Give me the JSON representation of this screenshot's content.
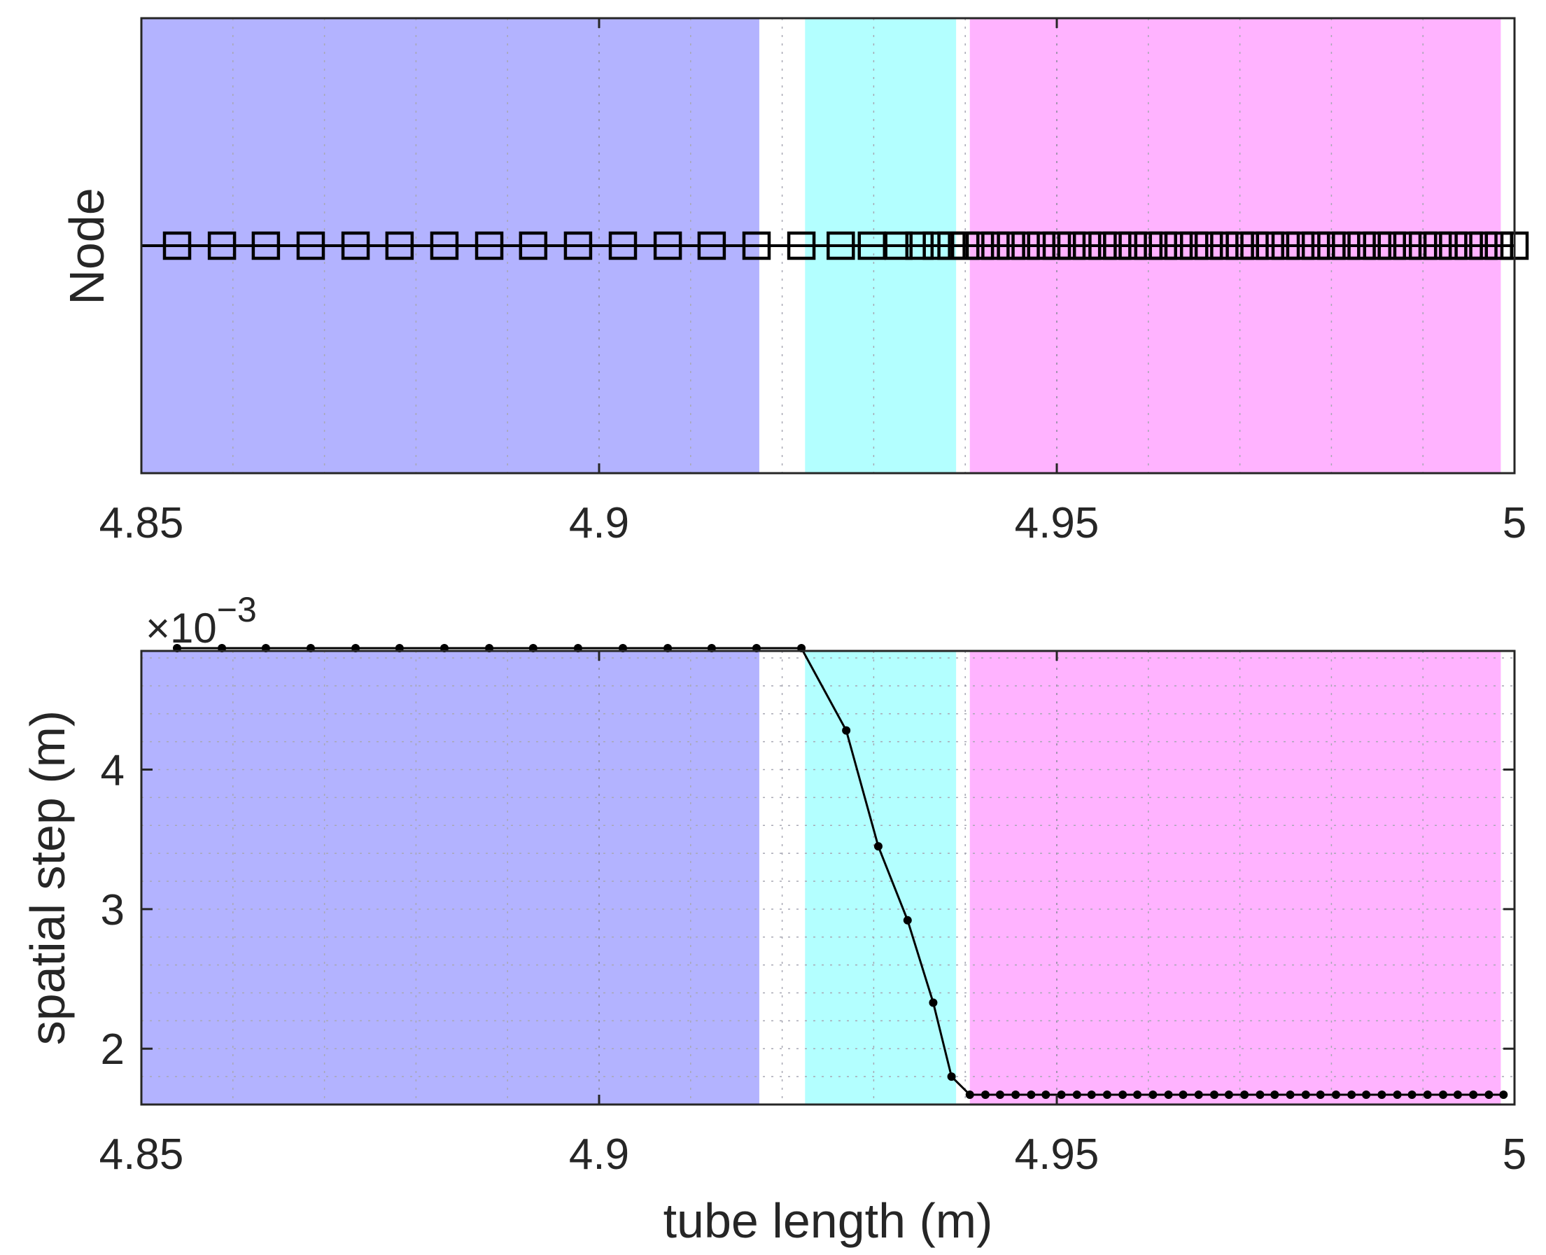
{
  "chart_data": [
    {
      "type": "scatter",
      "ylabel": "Node",
      "xlim": [
        4.85,
        5
      ],
      "ylim": [
        -1,
        1
      ],
      "x_ticks": [
        "4.85",
        "4.9",
        "4.95",
        "5"
      ],
      "y_ticks": [],
      "grid": true,
      "regions": [
        {
          "x0": 4.85,
          "x1": 4.9175,
          "color": "#b3b3ff"
        },
        {
          "x0": 4.9225,
          "x1": 4.939,
          "color": "#b3ffff"
        },
        {
          "x0": 4.9405,
          "x1": 4.9985,
          "color": "#ffb3ff"
        }
      ],
      "series": [
        {
          "marker": "square",
          "color": "#000000",
          "y": 0,
          "x": [
            4.8539,
            4.8588,
            4.8636,
            4.8685,
            4.8734,
            4.8782,
            4.8831,
            4.888,
            4.8928,
            4.8977,
            4.9026,
            4.9075,
            4.9123,
            4.9172,
            4.9221,
            4.9264,
            4.9298,
            4.9327,
            4.935,
            4.9369,
            4.9385,
            4.94,
            4.9416,
            4.9433,
            4.945,
            4.9466,
            4.9483,
            4.95,
            4.9516,
            4.9533,
            4.955,
            4.9566,
            4.9583,
            4.96,
            4.9616,
            4.9633,
            4.965,
            4.9666,
            4.9683,
            4.97,
            4.9716,
            4.9733,
            4.975,
            4.9766,
            4.9783,
            4.98,
            4.9816,
            4.9833,
            4.985,
            4.9866,
            4.9883,
            4.99,
            4.9916,
            4.9933,
            4.995,
            4.9966,
            4.9983,
            5.0
          ]
        }
      ]
    },
    {
      "type": "line",
      "xlabel": "tube length (m)",
      "ylabel": "spatial step (m)",
      "y_multiplier": "×10",
      "y_multiplier_exponent": "−3",
      "xlim": [
        4.85,
        5
      ],
      "ylim": [
        1.6,
        4.85
      ],
      "x_ticks": [
        "4.85",
        "4.9",
        "4.95",
        "5"
      ],
      "y_ticks": [
        "2",
        "3",
        "4"
      ],
      "grid": true,
      "regions": [
        {
          "x0": 4.85,
          "x1": 4.9175,
          "color": "#b3b3ff"
        },
        {
          "x0": 4.9225,
          "x1": 4.939,
          "color": "#b3ffff"
        },
        {
          "x0": 4.9405,
          "x1": 4.9985,
          "color": "#ffb3ff"
        }
      ],
      "series": [
        {
          "color": "#000000",
          "marker": "dot",
          "x": [
            4.8539,
            4.8588,
            4.8636,
            4.8685,
            4.8734,
            4.8782,
            4.8831,
            4.888,
            4.8928,
            4.8977,
            4.9026,
            4.9075,
            4.9123,
            4.9172,
            4.9221,
            4.927,
            4.9305,
            4.9337,
            4.9365,
            4.9385,
            4.9405,
            4.9422,
            4.9438,
            4.9455,
            4.9472,
            4.9488,
            4.9505,
            4.9522,
            4.9538,
            4.9555,
            4.9572,
            4.9588,
            4.9605,
            4.9622,
            4.9638,
            4.9655,
            4.9672,
            4.9688,
            4.9705,
            4.9722,
            4.9738,
            4.9755,
            4.9772,
            4.9788,
            4.9805,
            4.9822,
            4.9838,
            4.9855,
            4.9872,
            4.9888,
            4.9905,
            4.9922,
            4.9938,
            4.9955,
            4.9972,
            4.9988
          ],
          "y": [
            4.87,
            4.87,
            4.87,
            4.87,
            4.87,
            4.87,
            4.87,
            4.87,
            4.87,
            4.87,
            4.87,
            4.87,
            4.87,
            4.87,
            4.87,
            4.28,
            3.45,
            2.92,
            2.33,
            1.8,
            1.67,
            1.67,
            1.67,
            1.67,
            1.67,
            1.67,
            1.67,
            1.67,
            1.67,
            1.67,
            1.67,
            1.67,
            1.67,
            1.67,
            1.67,
            1.67,
            1.67,
            1.67,
            1.67,
            1.67,
            1.67,
            1.67,
            1.67,
            1.67,
            1.67,
            1.67,
            1.67,
            1.67,
            1.67,
            1.67,
            1.67,
            1.67,
            1.67,
            1.67,
            1.67,
            1.67
          ]
        }
      ]
    }
  ]
}
